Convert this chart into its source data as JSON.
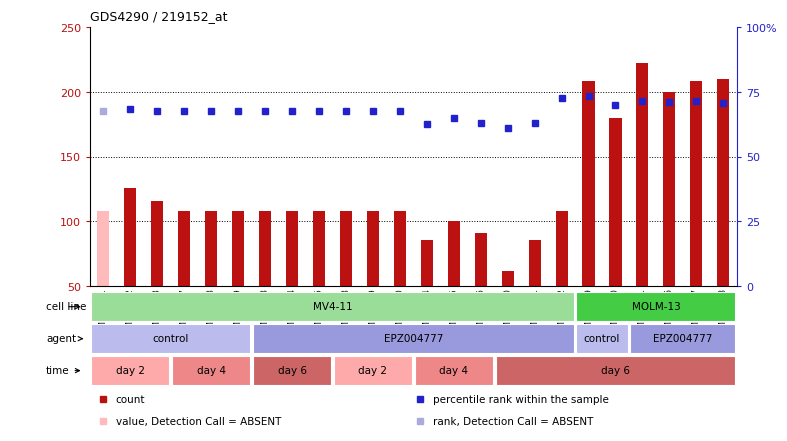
{
  "title": "GDS4290 / 219152_at",
  "samples": [
    "GSM739151",
    "GSM739152",
    "GSM739153",
    "GSM739157",
    "GSM739158",
    "GSM739159",
    "GSM739163",
    "GSM739164",
    "GSM739165",
    "GSM739148",
    "GSM739149",
    "GSM739150",
    "GSM739154",
    "GSM739155",
    "GSM739156",
    "GSM739160",
    "GSM739161",
    "GSM739162",
    "GSM739169",
    "GSM739170",
    "GSM739171",
    "GSM739166",
    "GSM739167",
    "GSM739168"
  ],
  "count_values": [
    108,
    126,
    116,
    108,
    108,
    108,
    108,
    108,
    108,
    108,
    108,
    108,
    86,
    100,
    91,
    62,
    86,
    108,
    208,
    180,
    222,
    200,
    208,
    210
  ],
  "rank_values": [
    185,
    187,
    185,
    185,
    185,
    185,
    185,
    185,
    185,
    185,
    185,
    185,
    175,
    180,
    176,
    172,
    176,
    195,
    197,
    190,
    193,
    192,
    193,
    191
  ],
  "absent_flags": [
    true,
    false,
    false,
    false,
    false,
    false,
    false,
    false,
    false,
    false,
    false,
    false,
    false,
    false,
    false,
    false,
    false,
    false,
    false,
    false,
    false,
    false,
    false,
    false
  ],
  "bar_color_normal": "#BB1111",
  "bar_color_absent": "#FFBBBB",
  "rank_color_normal": "#2222CC",
  "rank_color_absent": "#AAAADD",
  "ylim_left": [
    50,
    250
  ],
  "ylim_right": [
    0,
    100
  ],
  "yticks_left": [
    50,
    100,
    150,
    200,
    250
  ],
  "yticks_right": [
    0,
    25,
    50,
    75,
    100
  ],
  "cell_line_groups": [
    {
      "label": "MV4-11",
      "start": 0,
      "end": 18,
      "color": "#99DD99"
    },
    {
      "label": "MOLM-13",
      "start": 18,
      "end": 24,
      "color": "#44CC44"
    }
  ],
  "agent_groups": [
    {
      "label": "control",
      "start": 0,
      "end": 6,
      "color": "#BBBBEE"
    },
    {
      "label": "EPZ004777",
      "start": 6,
      "end": 18,
      "color": "#9999DD"
    },
    {
      "label": "control",
      "start": 18,
      "end": 20,
      "color": "#BBBBEE"
    },
    {
      "label": "EPZ004777",
      "start": 20,
      "end": 24,
      "color": "#9999DD"
    }
  ],
  "time_groups": [
    {
      "label": "day 2",
      "start": 0,
      "end": 3,
      "color": "#FFAAAA"
    },
    {
      "label": "day 4",
      "start": 3,
      "end": 6,
      "color": "#EE8888"
    },
    {
      "label": "day 6",
      "start": 6,
      "end": 9,
      "color": "#CC6666"
    },
    {
      "label": "day 2",
      "start": 9,
      "end": 12,
      "color": "#FFAAAA"
    },
    {
      "label": "day 4",
      "start": 12,
      "end": 15,
      "color": "#EE8888"
    },
    {
      "label": "day 6",
      "start": 15,
      "end": 24,
      "color": "#CC6666"
    }
  ],
  "legend_items": [
    {
      "label": "count",
      "color": "#BB1111"
    },
    {
      "label": "percentile rank within the sample",
      "color": "#2222CC"
    },
    {
      "label": "value, Detection Call = ABSENT",
      "color": "#FFBBBB"
    },
    {
      "label": "rank, Detection Call = ABSENT",
      "color": "#AAAADD"
    }
  ],
  "row_labels": [
    "cell line",
    "agent",
    "time"
  ],
  "grid_lines": [
    100,
    150,
    200
  ]
}
